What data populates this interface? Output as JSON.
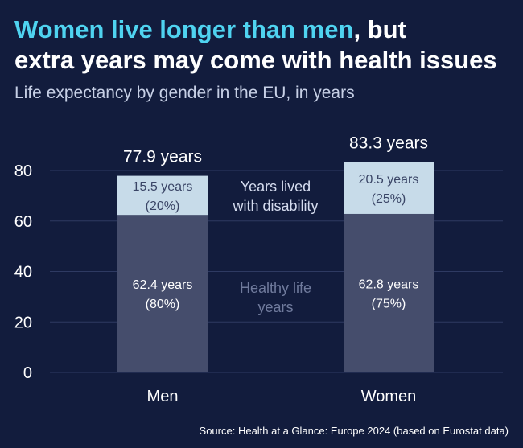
{
  "title": {
    "highlight": "Women live longer than men",
    "rest_line1": ", but",
    "line2": "extra years may come with health issues"
  },
  "subtitle": "Life expectancy by gender in the EU, in years",
  "source": "Source: Health at a Glance: Europe 2024 (based on Eurostat data)",
  "colors": {
    "background": "#121c3d",
    "healthy": "#454d6c",
    "disability": "#c7dbe9",
    "title_highlight": "#4fd3f0",
    "gridline": "#2e3a62"
  },
  "chart_data": {
    "type": "bar",
    "stacked": true,
    "categories": [
      "Men",
      "Women"
    ],
    "series": [
      {
        "name": "Healthy life years",
        "values": [
          62.4,
          62.8
        ],
        "labels": [
          [
            "62.4 years",
            "(80%)"
          ],
          [
            "62.8 years",
            "(75%)"
          ]
        ]
      },
      {
        "name": "Years lived with disability",
        "values": [
          15.5,
          20.5
        ],
        "labels": [
          [
            "15.5 years",
            "(20%)"
          ],
          [
            "20.5 years",
            "(25%)"
          ]
        ]
      }
    ],
    "totals": [
      "77.9 years",
      "83.3 years"
    ],
    "ylim": [
      0,
      85
    ],
    "yticks": [
      0,
      20,
      40,
      60,
      80
    ],
    "grid": true,
    "annotations": {
      "disability": [
        "Years lived",
        "with disability"
      ],
      "healthy": [
        "Healthy life",
        "years"
      ]
    }
  }
}
